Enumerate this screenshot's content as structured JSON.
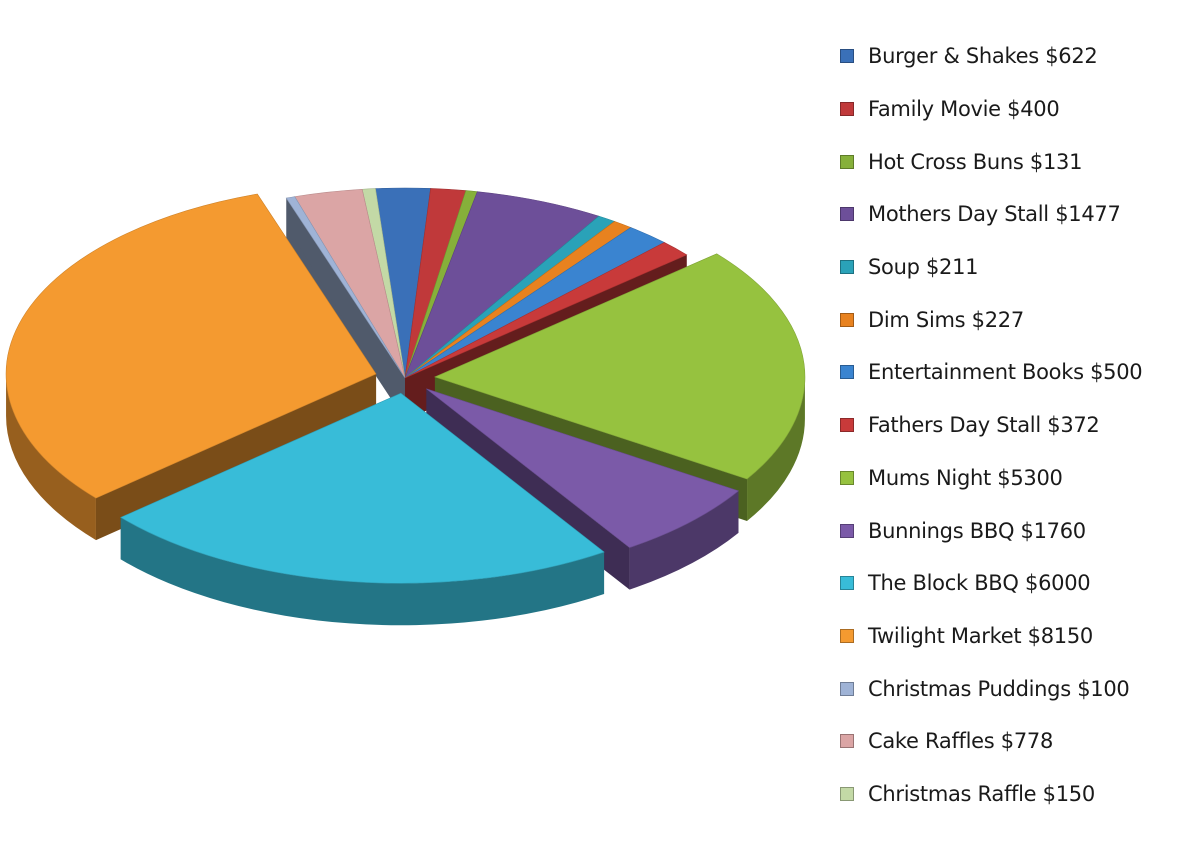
{
  "chart_data": {
    "type": "pie",
    "title": "",
    "legend_position": "right",
    "slices": [
      {
        "label": "Burger & Shakes $622",
        "value": 622,
        "color": "#3a70b8",
        "exploded": false
      },
      {
        "label": "Family Movie $400",
        "value": 400,
        "color": "#c0393a",
        "exploded": false
      },
      {
        "label": "Hot Cross Buns $131",
        "value": 131,
        "color": "#86b03a",
        "exploded": false
      },
      {
        "label": "Mothers Day Stall $1477",
        "value": 1477,
        "color": "#6d4f99",
        "exploded": false
      },
      {
        "label": "Soup $211",
        "value": 211,
        "color": "#2aa2b8",
        "exploded": false
      },
      {
        "label": "Dim Sims $227",
        "value": 227,
        "color": "#e8821f",
        "exploded": false
      },
      {
        "label": "Entertainment Books $500",
        "value": 500,
        "color": "#3a84d0",
        "exploded": false
      },
      {
        "label": "Fathers Day Stall $372",
        "value": 372,
        "color": "#c83a3a",
        "exploded": false
      },
      {
        "label": "Mums Night $5300",
        "value": 5300,
        "color": "#96c23f",
        "exploded": true
      },
      {
        "label": "Bunnings BBQ $1760",
        "value": 1760,
        "color": "#7b5aa8",
        "exploded": true
      },
      {
        "label": "The Block BBQ $6000",
        "value": 6000,
        "color": "#38bcd8",
        "exploded": true
      },
      {
        "label": "Twilight Market $8150",
        "value": 8150,
        "color": "#f49a30",
        "exploded": true
      },
      {
        "label": "Christmas Puddings $100",
        "value": 100,
        "color": "#9fb3d6",
        "exploded": false
      },
      {
        "label": "Cake Raffles $778",
        "value": 778,
        "color": "#dba5a5",
        "exploded": false
      },
      {
        "label": "Christmas Raffle $150",
        "value": 150,
        "color": "#c3d9a6",
        "exploded": false
      }
    ]
  }
}
